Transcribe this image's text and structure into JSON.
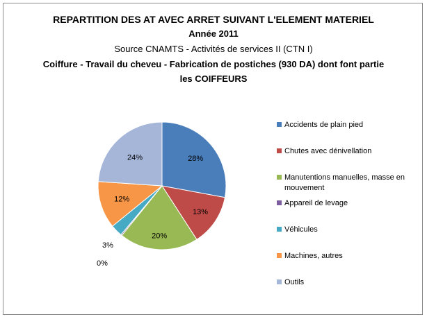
{
  "chart_data": {
    "type": "pie",
    "title_lines": [
      "REPARTITION DES AT AVEC ARRET SUIVANT L'ELEMENT MATERIEL",
      "Année 2011",
      "Source CNAMTS -  Activités de services II (CTN I)",
      "Coiffure  - Travail du cheveu - Fabrication de postiches (930 DA) dont font partie",
      "les COIFFEURS"
    ],
    "legend_position": "right",
    "slices": [
      {
        "label": "Accidents de plain pied",
        "legend_lines": [
          "Accidents de plain pied"
        ],
        "value": 28,
        "value_label": "28%",
        "color": "#4a7ebb"
      },
      {
        "label": "Chutes avec dénivellation",
        "legend_lines": [
          "Chutes avec dénivellation"
        ],
        "value": 13,
        "value_label": "13%",
        "color": "#be4b48"
      },
      {
        "label": "Manutentions manuelles, masse en mouvement",
        "legend_lines": [
          "Manutentions manuelles, masse en",
          "mouvement"
        ],
        "value": 20,
        "value_label": "20%",
        "color": "#98b954"
      },
      {
        "label": "Appareil de levage",
        "legend_lines": [
          "Appareil de levage"
        ],
        "value": 0.3,
        "value_label": "0%",
        "color": "#7d5fa0"
      },
      {
        "label": "Véhicules",
        "legend_lines": [
          "Véhicules"
        ],
        "value": 3,
        "value_label": "3%",
        "color": "#46aac5"
      },
      {
        "label": "Machines, autres",
        "legend_lines": [
          "Machines, autres"
        ],
        "value": 12,
        "value_label": "12%",
        "color": "#f79646"
      },
      {
        "label": "Outils",
        "legend_lines": [
          "Outils"
        ],
        "value": 24,
        "value_label": "24%",
        "color": "#a5b6d9"
      }
    ]
  }
}
